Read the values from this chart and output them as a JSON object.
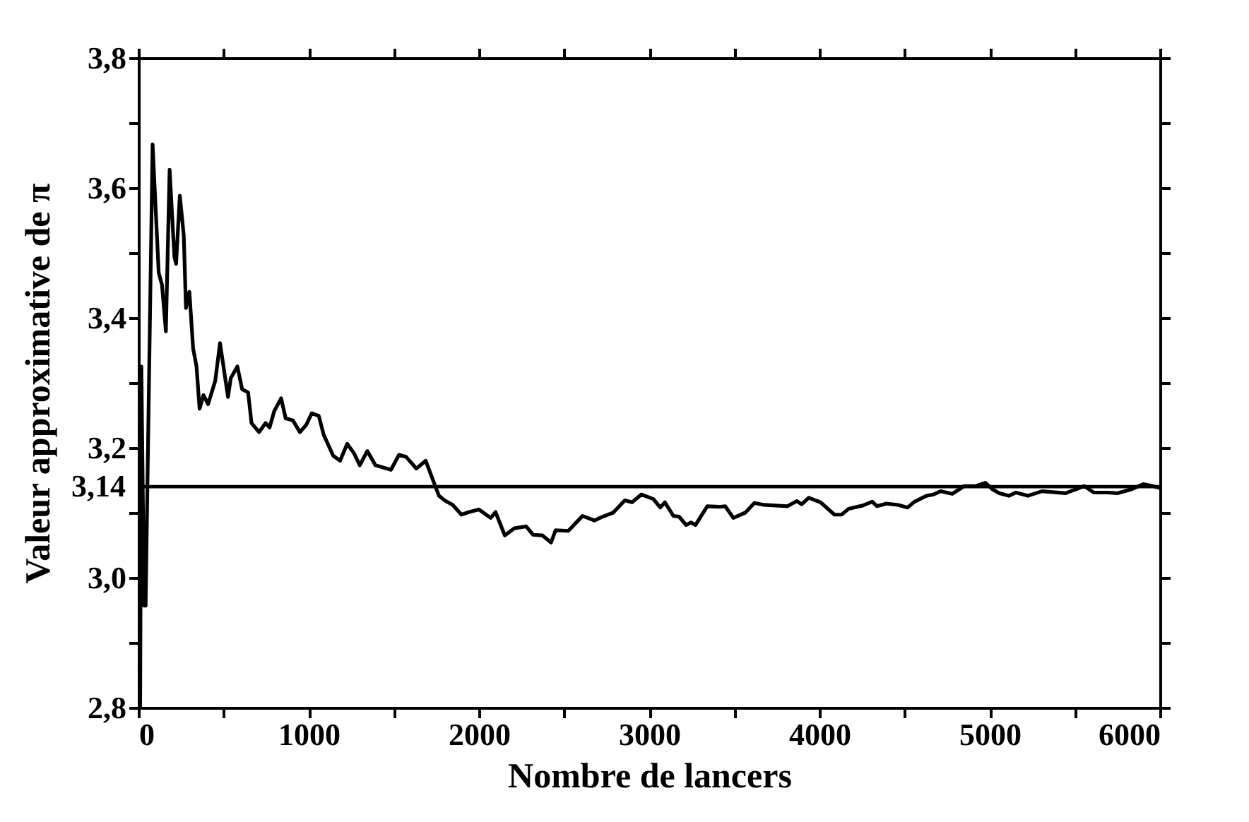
{
  "chart_data": {
    "type": "line",
    "xlabel": "Nombre de lancers",
    "ylabel": "Valeur approximative de π",
    "x": [
      10,
      17,
      33,
      42,
      83,
      119,
      138,
      161,
      183,
      211,
      221,
      243,
      266,
      279,
      299,
      321,
      341,
      359,
      382,
      409,
      451,
      479,
      526,
      542,
      581,
      609,
      644,
      664,
      708,
      747,
      770,
      797,
      838,
      865,
      907,
      948,
      985,
      1018,
      1059,
      1088,
      1143,
      1184,
      1226,
      1267,
      1300,
      1344,
      1392,
      1483,
      1530,
      1572,
      1632,
      1687,
      1723,
      1765,
      1798,
      1846,
      1897,
      1943,
      1999,
      2069,
      2097,
      2152,
      2207,
      2277,
      2318,
      2373,
      2423,
      2450,
      2525,
      2608,
      2678,
      2719,
      2788,
      2857,
      2899,
      2954,
      3024,
      3065,
      3092,
      3142,
      3175,
      3217,
      3245,
      3272,
      3341,
      3411,
      3446,
      3494,
      3564,
      3618,
      3674,
      3812,
      3867,
      3895,
      3937,
      4006,
      4088,
      4130,
      4171,
      4254,
      4310,
      4338,
      4393,
      4462,
      4517,
      4559,
      4628,
      4670,
      4712,
      4780,
      4850,
      4919,
      4974,
      5016,
      5057,
      5112,
      5154,
      5224,
      5307,
      5445,
      5556,
      5611,
      5694,
      5749,
      5832,
      5902,
      5957,
      5999
    ],
    "series": [
      {
        "color": "#000000",
        "values": [
          2.8,
          3.325,
          2.957,
          2.957,
          3.667,
          3.469,
          3.451,
          3.379,
          3.628,
          3.494,
          3.483,
          3.588,
          3.527,
          3.415,
          3.44,
          3.353,
          3.325,
          3.26,
          3.281,
          3.267,
          3.303,
          3.361,
          3.278,
          3.307,
          3.325,
          3.29,
          3.285,
          3.238,
          3.224,
          3.238,
          3.231,
          3.256,
          3.276,
          3.245,
          3.242,
          3.224,
          3.235,
          3.253,
          3.249,
          3.22,
          3.188,
          3.18,
          3.206,
          3.191,
          3.173,
          3.195,
          3.173,
          3.166,
          3.189,
          3.186,
          3.168,
          3.18,
          3.155,
          3.126,
          3.119,
          3.112,
          3.097,
          3.101,
          3.105,
          3.092,
          3.101,
          3.065,
          3.076,
          3.079,
          3.066,
          3.065,
          3.054,
          3.073,
          3.072,
          3.095,
          3.088,
          3.093,
          3.1,
          3.119,
          3.116,
          3.128,
          3.121,
          3.108,
          3.116,
          3.095,
          3.094,
          3.081,
          3.085,
          3.081,
          3.11,
          3.109,
          3.11,
          3.092,
          3.1,
          3.115,
          3.112,
          3.11,
          3.118,
          3.113,
          3.123,
          3.116,
          3.097,
          3.097,
          3.106,
          3.111,
          3.117,
          3.11,
          3.114,
          3.112,
          3.108,
          3.117,
          3.126,
          3.128,
          3.133,
          3.129,
          3.141,
          3.141,
          3.146,
          3.136,
          3.13,
          3.126,
          3.131,
          3.126,
          3.133,
          3.13,
          3.141,
          3.131,
          3.131,
          3.13,
          3.136,
          3.144,
          3.141,
          3.138
        ]
      }
    ],
    "xlim": [
      0,
      6000
    ],
    "xticks": [
      0,
      {
        "value": 500,
        "label": null
      },
      1000,
      {
        "value": 1500,
        "label": null
      },
      2000,
      {
        "value": 2500,
        "label": null
      },
      3000,
      {
        "value": 3500,
        "label": null
      },
      4000,
      {
        "value": 4500,
        "label": null
      },
      5000,
      {
        "value": 5500,
        "label": null
      },
      6000
    ],
    "ylim": [
      2.8,
      3.8
    ],
    "yticks": [
      {
        "value": 2.8,
        "label": "2,8"
      },
      {
        "value": 2.9,
        "label": null
      },
      {
        "value": 3.0,
        "label": "3,0"
      },
      {
        "value": 3.1,
        "label": null
      },
      {
        "value": 3.2,
        "label": "3,2"
      },
      {
        "value": 3.3,
        "label": null
      },
      {
        "value": 3.4,
        "label": "3,4"
      },
      {
        "value": 3.5,
        "label": null
      },
      {
        "value": 3.6,
        "label": "3,6"
      },
      {
        "value": 3.7,
        "label": null
      },
      {
        "value": 3.8,
        "label": "3,8"
      }
    ],
    "ref_lines": [
      {
        "axis": "y",
        "value": 3.14,
        "label": "3,14",
        "color": "#000000"
      }
    ],
    "grid": false
  }
}
